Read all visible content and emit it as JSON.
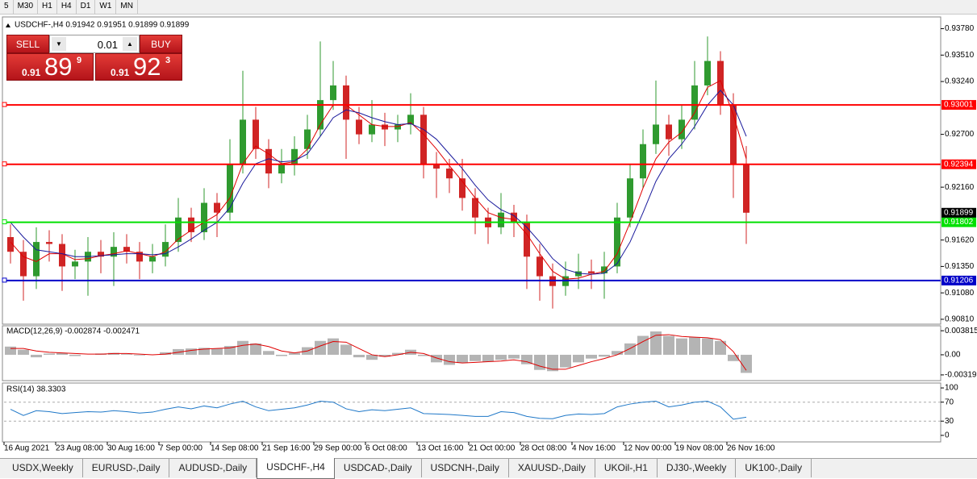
{
  "toolbar": {
    "timeframes": [
      "5",
      "M30",
      "H1",
      "H4",
      "D1",
      "W1",
      "MN"
    ]
  },
  "trade_panel": {
    "sell": "SELL",
    "buy": "BUY",
    "lot": "0.01",
    "sell_price": {
      "prefix": "0.91",
      "big": "89",
      "sup": "9"
    },
    "buy_price": {
      "prefix": "0.91",
      "big": "92",
      "sup": "3"
    }
  },
  "chart_data": [
    {
      "type": "candlestick",
      "title": "USDCHF-,H4  0.91942 0.91951 0.91899 0.91899",
      "categories": [
        "16 Aug 2021",
        null,
        null,
        null,
        "23 Aug 08:00",
        null,
        null,
        null,
        "30 Aug 16:00",
        null,
        null,
        null,
        "7 Sep 00:00",
        null,
        null,
        null,
        "14 Sep 08:00",
        null,
        null,
        null,
        "21 Sep 16:00",
        null,
        null,
        null,
        "29 Sep 00:00",
        null,
        null,
        null,
        "6 Oct 08:00",
        null,
        null,
        null,
        "13 Oct 16:00",
        null,
        null,
        null,
        "21 Oct 00:00",
        null,
        null,
        null,
        "28 Oct 08:00",
        null,
        null,
        null,
        "4 Nov 16:00",
        null,
        null,
        null,
        "12 Nov 00:00",
        null,
        null,
        null,
        "19 Nov 08:00",
        null,
        null,
        null,
        "26 Nov 16:00",
        null
      ],
      "open": [
        0.9165,
        0.915,
        0.9125,
        0.916,
        0.9158,
        0.9135,
        0.914,
        0.915,
        0.9145,
        0.9155,
        0.915,
        0.914,
        0.9145,
        0.916,
        0.9185,
        0.917,
        0.92,
        0.919,
        0.924,
        0.9285,
        0.9255,
        0.923,
        0.924,
        0.9255,
        0.9275,
        0.9305,
        0.932,
        0.9285,
        0.927,
        0.928,
        0.9275,
        0.928,
        0.929,
        0.924,
        0.9235,
        0.9225,
        0.9205,
        0.9185,
        0.9175,
        0.919,
        0.918,
        0.9145,
        0.9125,
        0.9115,
        0.9125,
        0.913,
        0.9128,
        0.9135,
        0.9185,
        0.9225,
        0.926,
        0.928,
        0.9265,
        0.9285,
        0.932,
        0.9345,
        0.93,
        0.924
      ],
      "high": [
        0.9178,
        0.9162,
        0.9175,
        0.9172,
        0.9168,
        0.9152,
        0.9165,
        0.9162,
        0.917,
        0.9168,
        0.916,
        0.9158,
        0.9178,
        0.9205,
        0.9195,
        0.9215,
        0.921,
        0.9265,
        0.9335,
        0.9298,
        0.9265,
        0.9255,
        0.9268,
        0.929,
        0.9365,
        0.9345,
        0.933,
        0.9298,
        0.9305,
        0.9292,
        0.929,
        0.9312,
        0.9298,
        0.9252,
        0.9245,
        0.9245,
        0.9215,
        0.9195,
        0.921,
        0.9198,
        0.9188,
        0.9158,
        0.9138,
        0.914,
        0.9148,
        0.9142,
        0.915,
        0.92,
        0.924,
        0.9275,
        0.9325,
        0.929,
        0.93,
        0.9345,
        0.937,
        0.9355,
        0.9312,
        0.9258
      ],
      "low": [
        0.9138,
        0.91,
        0.9112,
        0.914,
        0.911,
        0.9122,
        0.9105,
        0.9128,
        0.9115,
        0.9138,
        0.9122,
        0.9128,
        0.9135,
        0.915,
        0.916,
        0.9162,
        0.9165,
        0.9182,
        0.923,
        0.9245,
        0.9215,
        0.922,
        0.9228,
        0.9245,
        0.9268,
        0.9295,
        0.9245,
        0.926,
        0.9262,
        0.9258,
        0.9262,
        0.927,
        0.9225,
        0.9205,
        0.921,
        0.9192,
        0.9168,
        0.9158,
        0.9168,
        0.9165,
        0.9112,
        0.91,
        0.9092,
        0.9105,
        0.9112,
        0.9112,
        0.9102,
        0.9128,
        0.9175,
        0.9215,
        0.925,
        0.9248,
        0.9255,
        0.9275,
        0.931,
        0.929,
        0.9205,
        0.9158
      ],
      "close": [
        0.915,
        0.9125,
        0.916,
        0.9158,
        0.9135,
        0.914,
        0.915,
        0.9145,
        0.9155,
        0.915,
        0.914,
        0.9145,
        0.916,
        0.9185,
        0.917,
        0.92,
        0.919,
        0.924,
        0.9285,
        0.9255,
        0.923,
        0.924,
        0.9255,
        0.9275,
        0.9305,
        0.932,
        0.9285,
        0.927,
        0.928,
        0.9275,
        0.928,
        0.929,
        0.924,
        0.9235,
        0.9225,
        0.9205,
        0.9185,
        0.9175,
        0.919,
        0.918,
        0.9145,
        0.9125,
        0.9115,
        0.9125,
        0.913,
        0.9128,
        0.9135,
        0.9185,
        0.9225,
        0.926,
        0.928,
        0.9265,
        0.9285,
        0.932,
        0.9345,
        0.93,
        0.924,
        0.91899
      ],
      "up_color": "#2f9a2f",
      "down_color": "#d02424",
      "overlays": [
        {
          "color": "#e00000",
          "values": [
            0.916,
            0.9145,
            0.914,
            0.9148,
            0.9148,
            0.9142,
            0.9143,
            0.9146,
            0.9148,
            0.9151,
            0.9148,
            0.9145,
            0.915,
            0.9163,
            0.9172,
            0.918,
            0.9188,
            0.9205,
            0.924,
            0.9258,
            0.925,
            0.924,
            0.9242,
            0.9255,
            0.928,
            0.93,
            0.93,
            0.929,
            0.928,
            0.9278,
            0.9278,
            0.9282,
            0.927,
            0.9255,
            0.9238,
            0.9222,
            0.9205,
            0.919,
            0.9185,
            0.9183,
            0.9168,
            0.9148,
            0.913,
            0.9122,
            0.9123,
            0.9127,
            0.913,
            0.9148,
            0.918,
            0.9215,
            0.9245,
            0.9262,
            0.9272,
            0.9292,
            0.9318,
            0.9325,
            0.929,
            0.9245
          ]
        },
        {
          "color": "#1a1a9c",
          "values": [
            0.918,
            0.9165,
            0.9152,
            0.915,
            0.9148,
            0.9145,
            0.9145,
            0.9146,
            0.9147,
            0.9148,
            0.9148,
            0.9147,
            0.9148,
            0.9155,
            0.9163,
            0.9172,
            0.918,
            0.9195,
            0.922,
            0.924,
            0.9245,
            0.9242,
            0.9243,
            0.925,
            0.9268,
            0.9287,
            0.9295,
            0.9292,
            0.9287,
            0.9283,
            0.928,
            0.9281,
            0.9275,
            0.9265,
            0.925,
            0.9235,
            0.9218,
            0.9203,
            0.9193,
            0.9187,
            0.9175,
            0.916,
            0.9143,
            0.9132,
            0.9128,
            0.9127,
            0.9128,
            0.9138,
            0.916,
            0.919,
            0.9222,
            0.9245,
            0.926,
            0.9278,
            0.93,
            0.9315,
            0.93,
            0.9268
          ]
        }
      ],
      "levels": [
        {
          "value": 0.93001,
          "color": "#ff0000"
        },
        {
          "value": 0.92394,
          "color": "#ff0000"
        },
        {
          "value": 0.91802,
          "color": "#00e000"
        },
        {
          "value": 0.91206,
          "color": "#0000c8"
        }
      ],
      "bid": 0.91899,
      "ylim": [
        0.9076,
        0.939
      ],
      "yticks": [
        {
          "value": 0.9378,
          "label": "0.93780"
        },
        {
          "value": 0.9351,
          "label": "0.93510"
        },
        {
          "value": 0.9324,
          "label": "0.93240"
        },
        {
          "value": 0.927,
          "label": "0.92700"
        },
        {
          "value": 0.9216,
          "label": "0.92160"
        },
        {
          "value": 0.9162,
          "label": "0.91620"
        },
        {
          "value": 0.9135,
          "label": "0.91350"
        },
        {
          "value": 0.9108,
          "label": "0.91080"
        },
        {
          "value": 0.9081,
          "label": "0.90810"
        }
      ]
    },
    {
      "type": "macd",
      "title": "MACD(12,26,9) -0.002874 -0.002471",
      "histogram": {
        "color": "#b4b4b4",
        "values": [
          0.0013,
          0.0008,
          -0.0004,
          0.0002,
          0.0003,
          -0.0002,
          0,
          0.0002,
          0.0003,
          0.0001,
          -0.0001,
          0,
          0.0004,
          0.0009,
          0.001,
          0.0011,
          0.001,
          0.0014,
          0.0022,
          0.0018,
          0.0006,
          -0.0002,
          0.0003,
          0.0012,
          0.0022,
          0.0026,
          0.0016,
          -0.0004,
          -0.0008,
          -0.0003,
          0.0003,
          0.0008,
          -0.0002,
          -0.0012,
          -0.0016,
          -0.0013,
          -0.001,
          -0.0011,
          -0.0008,
          -0.0006,
          -0.0015,
          -0.0024,
          -0.0026,
          -0.002,
          -0.0012,
          -0.0006,
          -0.0003,
          0.0006,
          0.0018,
          0.003,
          0.0037,
          0.003,
          0.0026,
          0.0028,
          0.0026,
          0.0022,
          -0.001,
          -0.002874
        ]
      },
      "signal": {
        "color": "#e00000",
        "values": [
          0.001,
          0.001,
          0.0006,
          0.0004,
          0.0003,
          0.0002,
          0.0001,
          0.0001,
          0.0002,
          0.0002,
          0.0001,
          0,
          0.0001,
          0.0004,
          0.0007,
          0.0009,
          0.001,
          0.0011,
          0.0015,
          0.0017,
          0.0013,
          0.0006,
          0.0003,
          0.0006,
          0.0014,
          0.0021,
          0.002,
          0.001,
          0,
          -0.0003,
          0,
          0.0004,
          0.0002,
          -0.0005,
          -0.0011,
          -0.0013,
          -0.0012,
          -0.0011,
          -0.001,
          -0.0008,
          -0.0011,
          -0.0018,
          -0.0023,
          -0.0023,
          -0.0017,
          -0.0011,
          -0.0006,
          0,
          0.001,
          0.0021,
          0.0031,
          0.0032,
          0.0029,
          0.0028,
          0.0027,
          0.0024,
          0.0005,
          -0.002471
        ]
      },
      "ylim": [
        -0.0041,
        0.0046
      ],
      "yticks": [
        0.003815,
        {
          "value": 0,
          "label": "0.00"
        },
        -0.003193
      ]
    },
    {
      "type": "rsi",
      "title": "RSI(14) 38.3303",
      "color": "#1f78c8",
      "values": [
        55,
        42,
        52,
        50,
        46,
        48,
        50,
        49,
        52,
        50,
        47,
        49,
        55,
        60,
        56,
        62,
        58,
        66,
        72,
        60,
        52,
        55,
        58,
        64,
        72,
        70,
        56,
        50,
        54,
        52,
        55,
        58,
        46,
        45,
        44,
        42,
        40,
        40,
        50,
        48,
        40,
        36,
        35,
        42,
        45,
        44,
        46,
        60,
        66,
        70,
        72,
        60,
        64,
        70,
        72,
        60,
        34,
        38.3303
      ],
      "levels": [
        70,
        30
      ],
      "ylim": [
        -13.8,
        110.3
      ],
      "yticks": [
        100,
        70,
        30,
        0
      ]
    }
  ],
  "tabs": {
    "items": [
      "USDX,Weekly",
      "EURUSD-,Daily",
      "AUDUSD-,Daily",
      "USDCHF-,H4",
      "USDCAD-,Daily",
      "USDCNH-,Daily",
      "XAUUSD-,Daily",
      "UKOil-,H1",
      "DJ30-,Weekly",
      "UK100-,Daily"
    ],
    "active": 3
  }
}
